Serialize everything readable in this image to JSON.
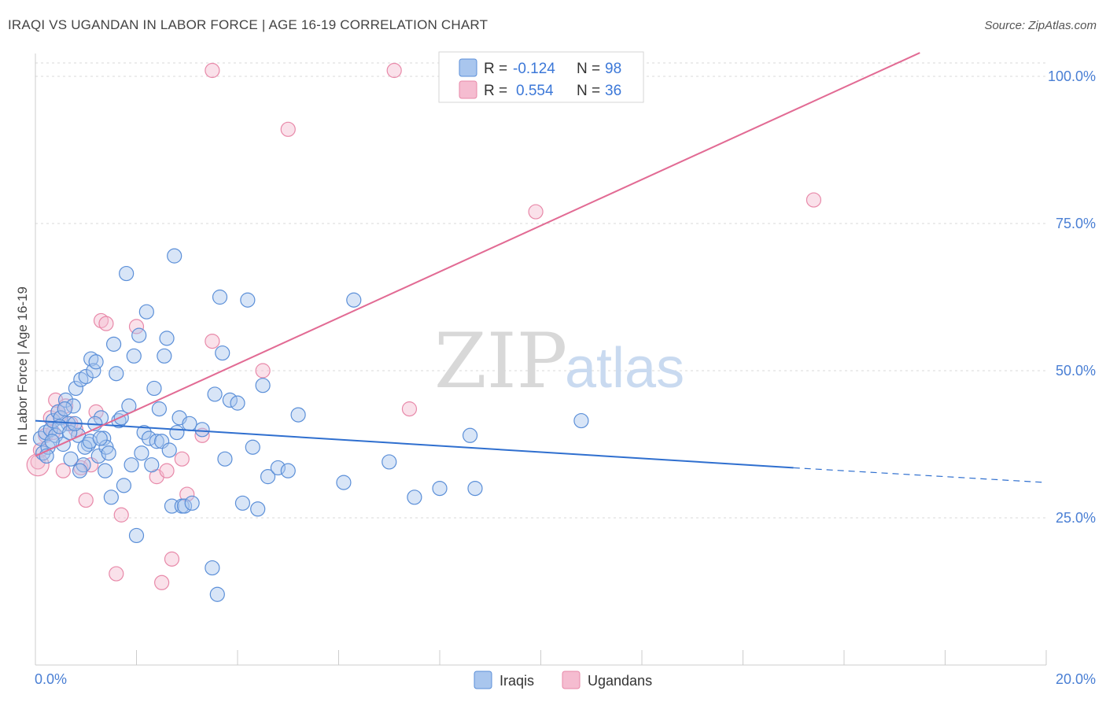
{
  "title": "IRAQI VS UGANDAN IN LABOR FORCE | AGE 16-19 CORRELATION CHART",
  "source": "Source: ZipAtlas.com",
  "watermark": {
    "zip": "ZIP",
    "atlas": "atlas"
  },
  "colors": {
    "iraqis_fill": "#a9c6ee",
    "iraqis_stroke": "#5b8fd8",
    "iraqis_line": "#2f6fcf",
    "ugandans_fill": "#f5bcd0",
    "ugandans_stroke": "#e889a9",
    "ugandans_line": "#e26b94",
    "tick_color": "#4a7fd4",
    "grid": "#d9d9d9"
  },
  "legend": {
    "iraqis": {
      "r_label": "R =",
      "r_value": "-0.124",
      "n_label": "N =",
      "n_value": "98"
    },
    "ugandans": {
      "r_label": "R =",
      "r_value": "0.554",
      "n_label": "N =",
      "n_value": "36"
    }
  },
  "chart_data": {
    "type": "scatter",
    "title": "IRAQI VS UGANDAN IN LABOR FORCE | AGE 16-19 CORRELATION CHART",
    "xlabel": "",
    "ylabel": "In Labor Force | Age 16-19",
    "xlim": [
      0,
      20
    ],
    "ylim": [
      2,
      104
    ],
    "x_tick_labels": [
      "0.0%",
      "20.0%"
    ],
    "y_ticks": [
      25,
      50,
      75,
      100
    ],
    "y_tick_labels": [
      "25.0%",
      "50.0%",
      "75.0%",
      "100.0%"
    ],
    "legend_position": "bottom-center",
    "series": [
      {
        "name": "Iraqis",
        "r": -0.124,
        "n": 98,
        "trend": {
          "x0": 0.0,
          "y0": 41.5,
          "x1": 15.0,
          "y1": 33.5,
          "dashed_to_x": 20.0,
          "dashed_to_y": 31.0
        },
        "points": [
          [
            0.1,
            38.5
          ],
          [
            0.15,
            36
          ],
          [
            0.2,
            39.5
          ],
          [
            0.25,
            37
          ],
          [
            0.3,
            40
          ],
          [
            0.35,
            41.5
          ],
          [
            0.4,
            39
          ],
          [
            0.45,
            43
          ],
          [
            0.5,
            42
          ],
          [
            0.55,
            37.5
          ],
          [
            0.6,
            45
          ],
          [
            0.65,
            41
          ],
          [
            0.7,
            35
          ],
          [
            0.75,
            44
          ],
          [
            0.8,
            47
          ],
          [
            0.85,
            39
          ],
          [
            0.9,
            48.5
          ],
          [
            0.95,
            34
          ],
          [
            1.0,
            49
          ],
          [
            1.05,
            37.5
          ],
          [
            1.1,
            52
          ],
          [
            1.15,
            50
          ],
          [
            1.2,
            51.5
          ],
          [
            1.25,
            35.5
          ],
          [
            1.3,
            42
          ],
          [
            1.35,
            38.5
          ],
          [
            1.4,
            37
          ],
          [
            1.45,
            36
          ],
          [
            1.5,
            28.5
          ],
          [
            1.55,
            54.5
          ],
          [
            1.6,
            49.5
          ],
          [
            1.65,
            41.5
          ],
          [
            1.7,
            42
          ],
          [
            1.75,
            30.5
          ],
          [
            1.8,
            66.5
          ],
          [
            1.85,
            44
          ],
          [
            1.9,
            34
          ],
          [
            1.95,
            52.5
          ],
          [
            2.0,
            22
          ],
          [
            2.05,
            56
          ],
          [
            2.1,
            36
          ],
          [
            2.15,
            39.5
          ],
          [
            2.2,
            60
          ],
          [
            2.25,
            38.5
          ],
          [
            2.3,
            34
          ],
          [
            2.35,
            47
          ],
          [
            2.4,
            38
          ],
          [
            2.45,
            43.5
          ],
          [
            2.5,
            38
          ],
          [
            2.55,
            52.5
          ],
          [
            2.6,
            55.5
          ],
          [
            2.65,
            36.5
          ],
          [
            2.7,
            27
          ],
          [
            2.75,
            69.5
          ],
          [
            2.8,
            39.5
          ],
          [
            2.85,
            42
          ],
          [
            2.9,
            27
          ],
          [
            2.95,
            27
          ],
          [
            3.1,
            27.5
          ],
          [
            3.05,
            41
          ],
          [
            3.3,
            40
          ],
          [
            3.5,
            16.5
          ],
          [
            3.55,
            46
          ],
          [
            3.6,
            12
          ],
          [
            3.65,
            62.5
          ],
          [
            3.7,
            53
          ],
          [
            3.75,
            35
          ],
          [
            3.85,
            45
          ],
          [
            4.0,
            44.5
          ],
          [
            4.1,
            27.5
          ],
          [
            4.2,
            62
          ],
          [
            4.3,
            37
          ],
          [
            4.4,
            26.5
          ],
          [
            4.5,
            47.5
          ],
          [
            4.6,
            32
          ],
          [
            4.8,
            33.5
          ],
          [
            5.0,
            33
          ],
          [
            5.2,
            42.5
          ],
          [
            6.1,
            31
          ],
          [
            6.3,
            62
          ],
          [
            7.0,
            34.5
          ],
          [
            7.5,
            28.5
          ],
          [
            8.0,
            30
          ],
          [
            8.6,
            39
          ],
          [
            8.7,
            30
          ],
          [
            10.8,
            41.5
          ],
          [
            0.22,
            35.5
          ],
          [
            0.33,
            38
          ],
          [
            0.48,
            40.5
          ],
          [
            0.58,
            43.5
          ],
          [
            0.68,
            39.5
          ],
          [
            0.78,
            41
          ],
          [
            0.88,
            33
          ],
          [
            0.98,
            37
          ],
          [
            1.08,
            38
          ],
          [
            1.18,
            41
          ],
          [
            1.28,
            38.5
          ],
          [
            1.38,
            33
          ]
        ]
      },
      {
        "name": "Ugandans",
        "r": 0.554,
        "n": 36,
        "trend": {
          "x0": 0.0,
          "y0": 35.5,
          "x1": 17.5,
          "y1": 104
        },
        "points": [
          [
            0.05,
            34.5
          ],
          [
            0.1,
            36.5
          ],
          [
            0.2,
            39
          ],
          [
            0.3,
            42
          ],
          [
            0.35,
            39.5
          ],
          [
            0.4,
            45
          ],
          [
            0.45,
            43
          ],
          [
            0.5,
            42
          ],
          [
            0.55,
            33
          ],
          [
            0.6,
            44
          ],
          [
            0.7,
            41
          ],
          [
            0.8,
            40
          ],
          [
            0.9,
            33.5
          ],
          [
            1.0,
            28
          ],
          [
            1.1,
            34
          ],
          [
            1.2,
            43
          ],
          [
            1.3,
            58.5
          ],
          [
            1.4,
            58
          ],
          [
            1.6,
            15.5
          ],
          [
            1.7,
            25.5
          ],
          [
            2.0,
            57.5
          ],
          [
            2.4,
            32
          ],
          [
            2.5,
            14
          ],
          [
            2.6,
            33
          ],
          [
            2.7,
            18
          ],
          [
            2.9,
            35
          ],
          [
            3.0,
            29
          ],
          [
            3.3,
            39
          ],
          [
            3.5,
            55
          ],
          [
            4.5,
            50
          ],
          [
            3.5,
            101
          ],
          [
            5.0,
            91
          ],
          [
            7.1,
            101
          ],
          [
            7.4,
            43.5
          ],
          [
            9.9,
            77
          ],
          [
            15.4,
            79
          ]
        ]
      }
    ]
  },
  "bottom_legend": {
    "iraqis": "Iraqis",
    "ugandans": "Ugandans"
  }
}
